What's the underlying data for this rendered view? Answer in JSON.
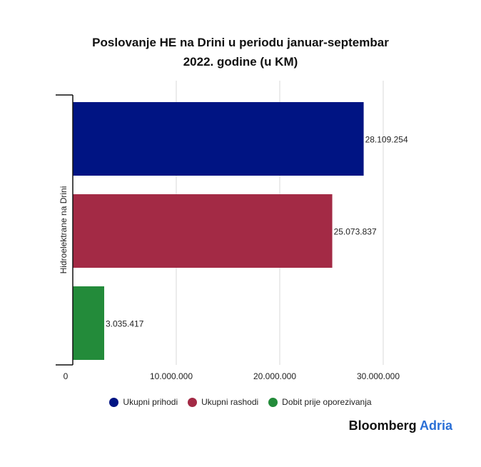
{
  "chart_data": {
    "type": "bar",
    "orientation": "horizontal",
    "title_line1": "Poslovanje HE na Drini u periodu januar-septembar",
    "title_line2": "2022. godine (u KM)",
    "ylabel": "Hidroelektrane na Drini",
    "xlim": [
      0,
      33000000
    ],
    "x_ticks": [
      0,
      10000000,
      20000000,
      30000000
    ],
    "x_tick_labels": [
      "0",
      "10.000.000",
      "20.000.000",
      "30.000.000"
    ],
    "grid": true,
    "legend_position": "bottom",
    "series": [
      {
        "name": "Ukupni prihodi",
        "value": 28109254,
        "label": "28.109.254",
        "color": "#001483"
      },
      {
        "name": "Ukupni rashodi",
        "value": 25073837,
        "label": "25.073.837",
        "color": "#a32a45"
      },
      {
        "name": "Dobit prije oporezivanja",
        "value": 3035417,
        "label": "3.035.417",
        "color": "#238b3a"
      }
    ]
  },
  "brand": {
    "name": "Bloomberg",
    "accent": "Adria"
  }
}
